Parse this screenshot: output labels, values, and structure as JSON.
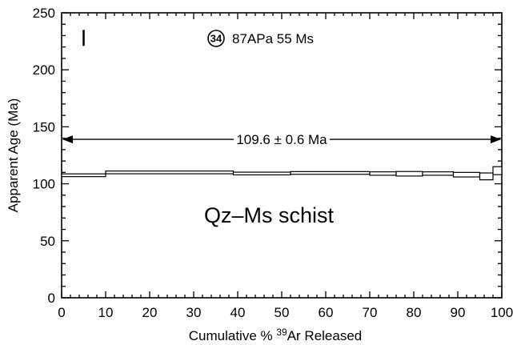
{
  "chart_data": {
    "type": "step",
    "xlabel": "Cumulative % ³⁹Ar Released",
    "ylabel": "Apparent Age (Ma)",
    "xlim": [
      0,
      100
    ],
    "ylim": [
      0,
      250
    ],
    "x_ticks": [
      "0",
      "10",
      "20",
      "30",
      "40",
      "50",
      "60",
      "70",
      "80",
      "90",
      "100"
    ],
    "y_ticks": [
      "0",
      "50",
      "100",
      "150",
      "200",
      "250"
    ],
    "sample_number": "34",
    "sample_label": "87APa 55 Ms",
    "plateau": {
      "label": "109.6 ± 0.6 Ma",
      "x_start": 0,
      "x_end": 100,
      "y": 139
    },
    "rock_label": "Qz–Ms schist",
    "error_bar_scale": {
      "x": 5,
      "y_min": 221,
      "y_max": 235
    },
    "steps": [
      {
        "x0": 0,
        "x1": 10,
        "age": 107.5,
        "err": 1.2
      },
      {
        "x0": 10,
        "x1": 39,
        "age": 110,
        "err": 1.2
      },
      {
        "x0": 39,
        "x1": 52,
        "age": 109,
        "err": 1.2
      },
      {
        "x0": 52,
        "x1": 70,
        "age": 109.5,
        "err": 1.2
      },
      {
        "x0": 70,
        "x1": 76,
        "age": 109,
        "err": 1.5
      },
      {
        "x0": 76,
        "x1": 82,
        "age": 108.8,
        "err": 2
      },
      {
        "x0": 82,
        "x1": 89,
        "age": 109,
        "err": 1.5
      },
      {
        "x0": 89,
        "x1": 95,
        "age": 108,
        "err": 2
      },
      {
        "x0": 95,
        "x1": 98,
        "age": 106.5,
        "err": 3
      },
      {
        "x0": 98,
        "x1": 100,
        "age": 111.5,
        "err": 3.5
      }
    ]
  }
}
